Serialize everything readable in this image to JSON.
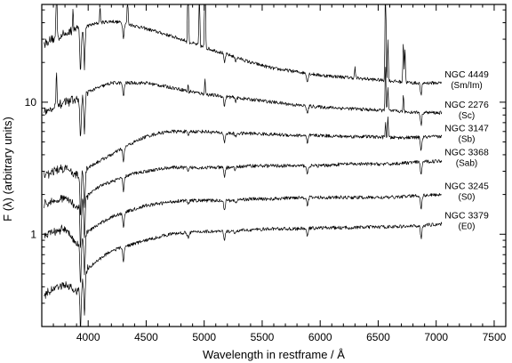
{
  "chart_data": {
    "type": "line",
    "title": "",
    "xlabel": "Wavelength in restframe / Å",
    "ylabel": "F (λ) (arbitrary units)",
    "xlim": [
      3600,
      7600
    ],
    "ylim": [
      0.2,
      55
    ],
    "yscale": "log",
    "grid": false,
    "legend": "none",
    "x_ticks": [
      {
        "value": 4000,
        "label": "4000"
      },
      {
        "value": 4500,
        "label": "4500"
      },
      {
        "value": 5000,
        "label": "5000"
      },
      {
        "value": 5500,
        "label": "5500"
      },
      {
        "value": 6000,
        "label": "6000"
      },
      {
        "value": 6500,
        "label": "6500"
      },
      {
        "value": 7000,
        "label": "7000"
      },
      {
        "value": 7500,
        "label": "7500"
      }
    ],
    "y_ticks": [
      {
        "value": 1,
        "label": "1"
      },
      {
        "value": 10,
        "label": "10"
      }
    ],
    "series": [
      {
        "id": "ngc4449",
        "label": "NGC 4449",
        "type_label": "(Sm/Im)",
        "x_end": 7050,
        "points": [
          [
            3620,
            28
          ],
          [
            3700,
            30
          ],
          [
            3800,
            33
          ],
          [
            3900,
            36
          ],
          [
            4000,
            38
          ],
          [
            4100,
            40
          ],
          [
            4200,
            41
          ],
          [
            4300,
            40
          ],
          [
            4400,
            38
          ],
          [
            4500,
            36
          ],
          [
            4600,
            34
          ],
          [
            4700,
            32
          ],
          [
            4800,
            30
          ],
          [
            4900,
            28
          ],
          [
            5000,
            26
          ],
          [
            5200,
            23
          ],
          [
            5400,
            20
          ],
          [
            5600,
            18
          ],
          [
            5800,
            17
          ],
          [
            6000,
            16
          ],
          [
            6200,
            15.5
          ],
          [
            6400,
            15
          ],
          [
            6600,
            14.5
          ],
          [
            6800,
            14
          ],
          [
            7050,
            14
          ]
        ],
        "lines": [
          [
            3727,
            4.0
          ],
          [
            3869,
            1.4
          ],
          [
            4102,
            1.3
          ],
          [
            4340,
            1.6
          ],
          [
            4861,
            3.5
          ],
          [
            4959,
            2.5
          ],
          [
            5007,
            5.0
          ],
          [
            6300,
            1.2
          ],
          [
            6563,
            6.0
          ],
          [
            6584,
            2.0
          ],
          [
            6717,
            2.0
          ],
          [
            6731,
            1.8
          ]
        ]
      },
      {
        "id": "ngc2276",
        "label": "NGC 2276",
        "type_label": "(Sc)",
        "x_end": 7050,
        "points": [
          [
            3620,
            8.5
          ],
          [
            3700,
            9
          ],
          [
            3800,
            10
          ],
          [
            3900,
            10.5
          ],
          [
            4000,
            12
          ],
          [
            4100,
            13
          ],
          [
            4200,
            14
          ],
          [
            4300,
            14
          ],
          [
            4400,
            14
          ],
          [
            4500,
            14
          ],
          [
            4600,
            13.5
          ],
          [
            4700,
            13
          ],
          [
            4800,
            12.5
          ],
          [
            4900,
            12
          ],
          [
            5000,
            11.5
          ],
          [
            5200,
            11
          ],
          [
            5400,
            10.5
          ],
          [
            5600,
            10
          ],
          [
            5800,
            9.5
          ],
          [
            6000,
            9.2
          ],
          [
            6200,
            9
          ],
          [
            6400,
            8.8
          ],
          [
            6600,
            8.6
          ],
          [
            6800,
            8.4
          ],
          [
            7050,
            8.3
          ]
        ],
        "lines": [
          [
            3727,
            1.8
          ],
          [
            4861,
            1.2
          ],
          [
            5007,
            1.3
          ],
          [
            6563,
            2.2
          ],
          [
            6584,
            1.5
          ],
          [
            6717,
            1.3
          ]
        ]
      },
      {
        "id": "ngc3147",
        "label": "NGC 3147",
        "type_label": "(Sb)",
        "x_end": 7050,
        "points": [
          [
            3620,
            2.8
          ],
          [
            3700,
            3.0
          ],
          [
            3800,
            3.2
          ],
          [
            3900,
            2.8
          ],
          [
            4000,
            3.2
          ],
          [
            4100,
            3.6
          ],
          [
            4200,
            4.0
          ],
          [
            4300,
            4.5
          ],
          [
            4400,
            5.0
          ],
          [
            4500,
            5.5
          ],
          [
            4600,
            5.8
          ],
          [
            4700,
            6.0
          ],
          [
            4800,
            6.0
          ],
          [
            5000,
            6.0
          ],
          [
            5200,
            5.8
          ],
          [
            5400,
            5.8
          ],
          [
            5600,
            5.7
          ],
          [
            5800,
            5.6
          ],
          [
            6000,
            5.6
          ],
          [
            6200,
            5.5
          ],
          [
            6400,
            5.5
          ],
          [
            6600,
            5.4
          ],
          [
            6800,
            5.4
          ],
          [
            7050,
            5.5
          ]
        ],
        "lines": [
          [
            6563,
            1.3
          ],
          [
            6584,
            1.4
          ]
        ]
      },
      {
        "id": "ngc3368",
        "label": "NGC 3368",
        "type_label": "(Sab)",
        "x_end": 7050,
        "points": [
          [
            3620,
            1.7
          ],
          [
            3700,
            1.8
          ],
          [
            3800,
            1.9
          ],
          [
            3900,
            1.6
          ],
          [
            4000,
            2.0
          ],
          [
            4100,
            2.3
          ],
          [
            4200,
            2.5
          ],
          [
            4300,
            2.7
          ],
          [
            4400,
            2.9
          ],
          [
            4500,
            3.0
          ],
          [
            4600,
            3.1
          ],
          [
            4700,
            3.2
          ],
          [
            4800,
            3.2
          ],
          [
            5000,
            3.2
          ],
          [
            5200,
            3.2
          ],
          [
            5400,
            3.3
          ],
          [
            5600,
            3.3
          ],
          [
            5800,
            3.3
          ],
          [
            6000,
            3.3
          ],
          [
            6200,
            3.4
          ],
          [
            6400,
            3.4
          ],
          [
            6600,
            3.4
          ],
          [
            6800,
            3.5
          ],
          [
            7050,
            3.6
          ]
        ],
        "lines": []
      },
      {
        "id": "ngc3245",
        "label": "NGC 3245",
        "type_label": "(S0)",
        "x_end": 7050,
        "points": [
          [
            3620,
            1.0
          ],
          [
            3700,
            1.05
          ],
          [
            3800,
            1.1
          ],
          [
            3900,
            0.85
          ],
          [
            4000,
            1.05
          ],
          [
            4100,
            1.2
          ],
          [
            4200,
            1.35
          ],
          [
            4300,
            1.45
          ],
          [
            4400,
            1.55
          ],
          [
            4500,
            1.65
          ],
          [
            4600,
            1.7
          ],
          [
            4700,
            1.75
          ],
          [
            4800,
            1.8
          ],
          [
            5000,
            1.8
          ],
          [
            5200,
            1.8
          ],
          [
            5400,
            1.85
          ],
          [
            5600,
            1.85
          ],
          [
            5800,
            1.9
          ],
          [
            6000,
            1.9
          ],
          [
            6200,
            1.9
          ],
          [
            6400,
            1.9
          ],
          [
            6600,
            1.9
          ],
          [
            6800,
            1.95
          ],
          [
            7050,
            2.0
          ]
        ],
        "lines": []
      },
      {
        "id": "ngc3379",
        "label": "NGC 3379",
        "type_label": "(E0)",
        "x_end": 7050,
        "points": [
          [
            3620,
            0.35
          ],
          [
            3700,
            0.38
          ],
          [
            3800,
            0.42
          ],
          [
            3900,
            0.36
          ],
          [
            4000,
            0.55
          ],
          [
            4100,
            0.65
          ],
          [
            4200,
            0.75
          ],
          [
            4300,
            0.8
          ],
          [
            4400,
            0.85
          ],
          [
            4500,
            0.9
          ],
          [
            4600,
            0.95
          ],
          [
            4700,
            1.0
          ],
          [
            4800,
            1.02
          ],
          [
            5000,
            1.05
          ],
          [
            5200,
            1.05
          ],
          [
            5400,
            1.08
          ],
          [
            5600,
            1.1
          ],
          [
            5800,
            1.1
          ],
          [
            6000,
            1.12
          ],
          [
            6200,
            1.12
          ],
          [
            6400,
            1.13
          ],
          [
            6600,
            1.14
          ],
          [
            6800,
            1.15
          ],
          [
            7050,
            1.2
          ]
        ],
        "lines": []
      }
    ],
    "absorption_features": [
      [
        3934,
        0.45
      ],
      [
        3968,
        0.5
      ],
      [
        4304,
        0.78
      ],
      [
        4861,
        0.92
      ],
      [
        5175,
        0.85
      ],
      [
        5270,
        0.94
      ],
      [
        5890,
        0.86
      ],
      [
        6870,
        0.8
      ]
    ]
  }
}
